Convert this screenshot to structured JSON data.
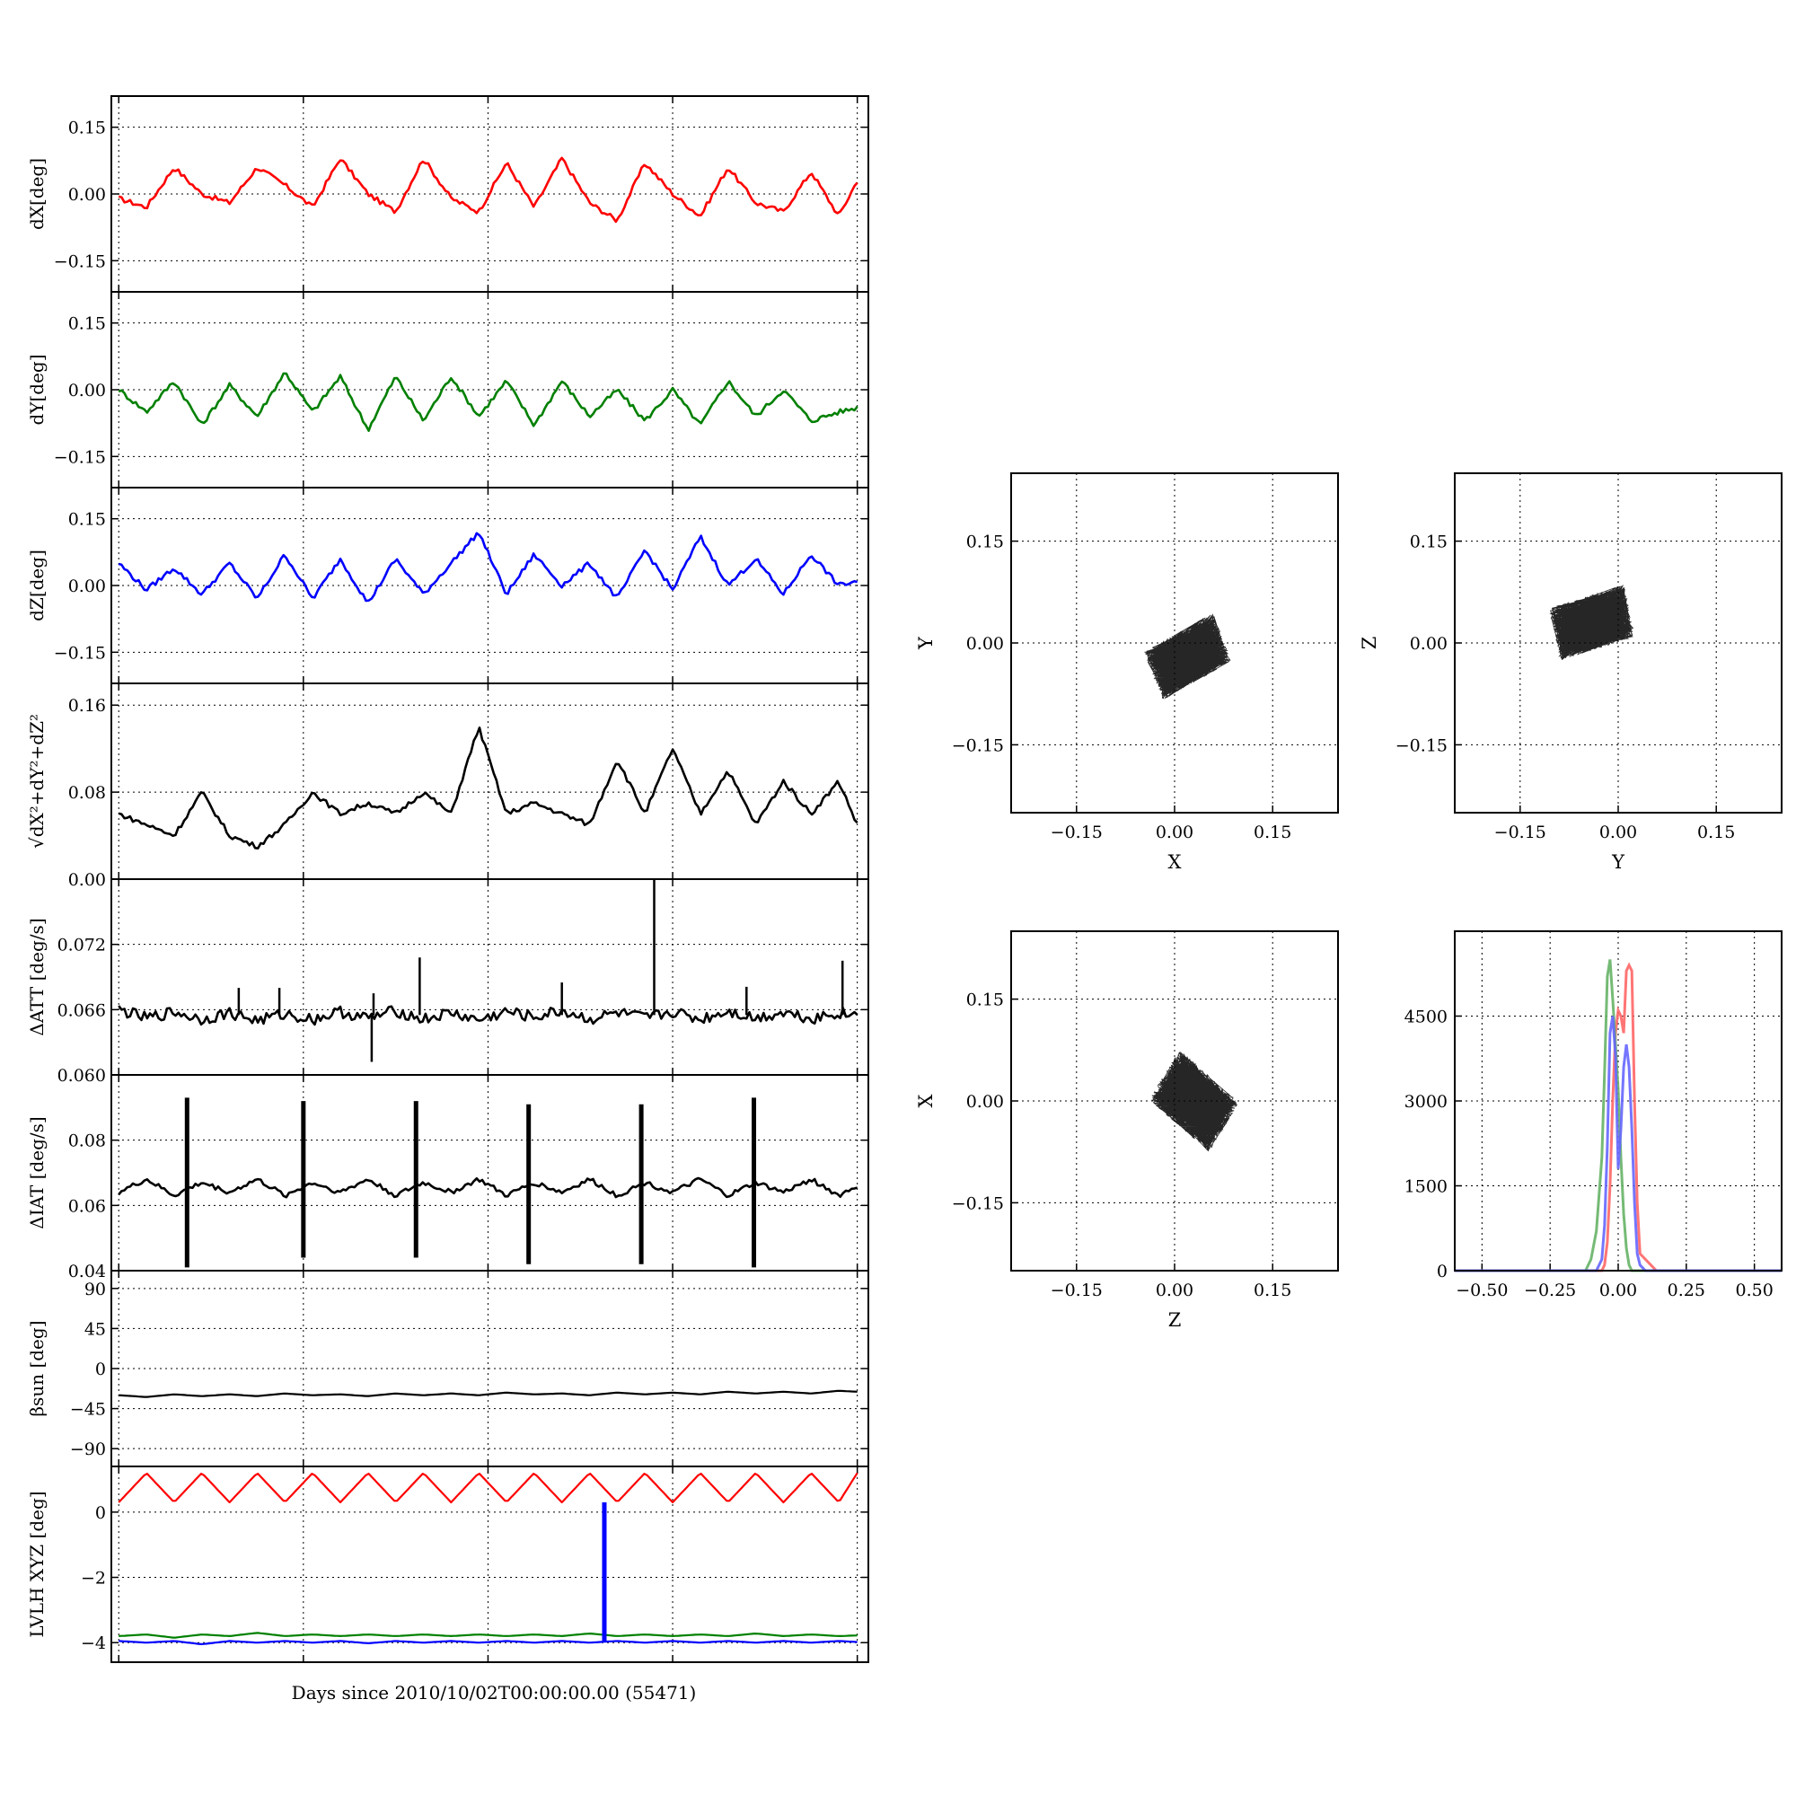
{
  "figure": {
    "xlabel": "Days since 2010/10/02T00:00:00.00 (55471)"
  },
  "chart_data": [
    {
      "id": "dx",
      "type": "line",
      "ylabel": "dX[deg]",
      "ylim": [
        -0.22,
        0.22
      ],
      "yticks": [
        -0.15,
        0.0,
        0.15
      ],
      "yticklabels": [
        "−0.15",
        "0.00",
        "0.15"
      ],
      "grid": true,
      "x": [
        0.0,
        0.15,
        0.3,
        0.45,
        0.6,
        0.75,
        0.9,
        1.05,
        1.2,
        1.35,
        1.5,
        1.65,
        1.8,
        1.95,
        2.1,
        2.25,
        2.4,
        2.55,
        2.7,
        2.85,
        3.0,
        3.15,
        3.3,
        3.45,
        3.6,
        3.75,
        3.9,
        4.0
      ],
      "series": [
        {
          "color": "#ff0000",
          "values": [
            -0.01,
            -0.03,
            0.06,
            0.0,
            -0.02,
            0.06,
            0.02,
            -0.03,
            0.08,
            0.0,
            -0.04,
            0.08,
            -0.01,
            -0.04,
            0.07,
            -0.03,
            0.08,
            -0.02,
            -0.06,
            0.07,
            0.0,
            -0.05,
            0.06,
            -0.02,
            -0.04,
            0.05,
            -0.05,
            0.03
          ]
        }
      ]
    },
    {
      "id": "dy",
      "type": "line",
      "ylabel": "dY[deg]",
      "ylim": [
        -0.22,
        0.22
      ],
      "yticks": [
        -0.15,
        0.0,
        0.15
      ],
      "yticklabels": [
        "−0.15",
        "0.00",
        "0.15"
      ],
      "grid": true,
      "x": [
        0.0,
        0.15,
        0.3,
        0.45,
        0.6,
        0.75,
        0.9,
        1.05,
        1.2,
        1.35,
        1.5,
        1.65,
        1.8,
        1.95,
        2.1,
        2.25,
        2.4,
        2.55,
        2.7,
        2.85,
        3.0,
        3.15,
        3.3,
        3.45,
        3.6,
        3.75,
        3.9,
        4.0
      ],
      "series": [
        {
          "color": "#008000",
          "values": [
            0.0,
            -0.05,
            0.02,
            -0.08,
            0.01,
            -0.06,
            0.04,
            -0.05,
            0.03,
            -0.09,
            0.03,
            -0.07,
            0.03,
            -0.06,
            0.02,
            -0.08,
            0.02,
            -0.06,
            0.0,
            -0.07,
            0.0,
            -0.08,
            0.02,
            -0.06,
            0.0,
            -0.07,
            -0.05,
            -0.04
          ]
        }
      ]
    },
    {
      "id": "dz",
      "type": "line",
      "ylabel": "dZ[deg]",
      "ylim": [
        -0.22,
        0.22
      ],
      "yticks": [
        -0.15,
        0.0,
        0.15
      ],
      "yticklabels": [
        "−0.15",
        "0.00",
        "0.15"
      ],
      "grid": true,
      "x": [
        0.0,
        0.15,
        0.3,
        0.45,
        0.6,
        0.75,
        0.9,
        1.05,
        1.2,
        1.35,
        1.5,
        1.65,
        1.8,
        1.95,
        2.1,
        2.25,
        2.4,
        2.55,
        2.7,
        2.85,
        3.0,
        3.15,
        3.3,
        3.45,
        3.6,
        3.75,
        3.9,
        4.0
      ],
      "series": [
        {
          "color": "#0000ff",
          "values": [
            0.05,
            -0.01,
            0.04,
            -0.02,
            0.05,
            -0.03,
            0.07,
            -0.03,
            0.06,
            -0.04,
            0.06,
            -0.02,
            0.05,
            0.12,
            -0.02,
            0.07,
            0.0,
            0.05,
            -0.03,
            0.08,
            -0.01,
            0.11,
            0.0,
            0.06,
            -0.02,
            0.07,
            0.0,
            0.01
          ]
        }
      ]
    },
    {
      "id": "rss",
      "type": "line",
      "ylabel": "√dX²+dY²+dZ²",
      "ylim": [
        0.0,
        0.18
      ],
      "yticks": [
        0.0,
        0.08,
        0.16
      ],
      "yticklabels": [
        "0.00",
        "0.08",
        "0.16"
      ],
      "grid": true,
      "x": [
        0.0,
        0.15,
        0.3,
        0.45,
        0.6,
        0.75,
        0.9,
        1.05,
        1.2,
        1.35,
        1.5,
        1.65,
        1.8,
        1.95,
        2.1,
        2.25,
        2.4,
        2.55,
        2.7,
        2.85,
        3.0,
        3.15,
        3.3,
        3.45,
        3.6,
        3.75,
        3.9,
        4.0
      ],
      "series": [
        {
          "color": "#000000",
          "values": [
            0.06,
            0.05,
            0.04,
            0.08,
            0.04,
            0.03,
            0.05,
            0.08,
            0.06,
            0.07,
            0.06,
            0.08,
            0.06,
            0.14,
            0.06,
            0.07,
            0.06,
            0.05,
            0.11,
            0.06,
            0.12,
            0.06,
            0.1,
            0.05,
            0.09,
            0.06,
            0.09,
            0.05
          ]
        }
      ]
    },
    {
      "id": "datt",
      "type": "line",
      "ylabel": "ΔATT [deg/s]",
      "ylim": [
        0.06,
        0.078
      ],
      "yticks": [
        0.06,
        0.066,
        0.072
      ],
      "yticklabels": [
        "0.060",
        "0.066",
        "0.072"
      ],
      "grid": true,
      "x": [
        0.0,
        0.15,
        0.3,
        0.45,
        0.6,
        0.75,
        0.9,
        1.05,
        1.2,
        1.35,
        1.5,
        1.65,
        1.8,
        1.95,
        2.1,
        2.25,
        2.4,
        2.55,
        2.7,
        2.85,
        3.0,
        3.15,
        3.3,
        3.45,
        3.6,
        3.75,
        3.9,
        4.0
      ],
      "series": [
        {
          "color": "#000000",
          "values": [
            0.066,
            0.0652,
            0.0658,
            0.0651,
            0.0657,
            0.065,
            0.0656,
            0.0651,
            0.0658,
            0.0652,
            0.0659,
            0.0651,
            0.0657,
            0.065,
            0.0658,
            0.0653,
            0.0659,
            0.0651,
            0.0657,
            0.0652,
            0.0658,
            0.0651,
            0.0659,
            0.0652,
            0.0658,
            0.0652,
            0.0657,
            0.0655
          ]
        }
      ],
      "spikes": [
        {
          "x": 0.65,
          "value": 0.068
        },
        {
          "x": 0.87,
          "value": 0.068
        },
        {
          "x": 1.38,
          "value": 0.0675
        },
        {
          "x": 1.37,
          "value": 0.0612
        },
        {
          "x": 1.63,
          "value": 0.0708
        },
        {
          "x": 2.4,
          "value": 0.0685
        },
        {
          "x": 2.9,
          "value": 0.078
        },
        {
          "x": 3.4,
          "value": 0.0681
        },
        {
          "x": 3.92,
          "value": 0.0705
        }
      ]
    },
    {
      "id": "diat",
      "type": "line",
      "ylabel": "ΔIAT [deg/s]",
      "ylim": [
        0.04,
        0.1
      ],
      "yticks": [
        0.04,
        0.06,
        0.08
      ],
      "yticklabels": [
        "0.04",
        "0.06",
        "0.08"
      ],
      "grid": true,
      "x": [
        0.0,
        0.15,
        0.3,
        0.45,
        0.6,
        0.75,
        0.9,
        1.05,
        1.2,
        1.35,
        1.5,
        1.65,
        1.8,
        1.95,
        2.1,
        2.25,
        2.4,
        2.55,
        2.7,
        2.85,
        3.0,
        3.15,
        3.3,
        3.45,
        3.6,
        3.75,
        3.9,
        4.0
      ],
      "series": [
        {
          "color": "#000000",
          "values": [
            0.064,
            0.068,
            0.063,
            0.067,
            0.064,
            0.068,
            0.063,
            0.067,
            0.064,
            0.068,
            0.063,
            0.067,
            0.064,
            0.068,
            0.063,
            0.067,
            0.064,
            0.068,
            0.063,
            0.067,
            0.064,
            0.068,
            0.063,
            0.067,
            0.064,
            0.068,
            0.063,
            0.066
          ]
        }
      ],
      "spikes": [
        {
          "x": 0.37,
          "low": 0.041,
          "high": 0.093
        },
        {
          "x": 1.0,
          "low": 0.044,
          "high": 0.092
        },
        {
          "x": 1.61,
          "low": 0.044,
          "high": 0.092
        },
        {
          "x": 2.22,
          "low": 0.042,
          "high": 0.091
        },
        {
          "x": 2.83,
          "low": 0.042,
          "high": 0.091
        },
        {
          "x": 3.44,
          "low": 0.041,
          "high": 0.093
        }
      ]
    },
    {
      "id": "beta",
      "type": "line",
      "ylabel": "βsun [deg]",
      "ylim": [
        -110,
        110
      ],
      "yticks": [
        -90,
        -45,
        0,
        45,
        90
      ],
      "yticklabels": [
        "−90",
        "−45",
        "0",
        "45",
        "90"
      ],
      "grid": true,
      "x": [
        0.0,
        0.15,
        0.3,
        0.45,
        0.6,
        0.75,
        0.9,
        1.05,
        1.2,
        1.35,
        1.5,
        1.65,
        1.8,
        1.95,
        2.1,
        2.25,
        2.4,
        2.55,
        2.7,
        2.85,
        3.0,
        3.15,
        3.3,
        3.45,
        3.6,
        3.75,
        3.9,
        4.0
      ],
      "series": [
        {
          "color": "#000000",
          "values": [
            -30,
            -32,
            -29,
            -31,
            -29,
            -31,
            -28,
            -30,
            -29,
            -31,
            -28,
            -30,
            -28,
            -30,
            -27,
            -29,
            -28,
            -30,
            -27,
            -29,
            -27,
            -29,
            -26,
            -28,
            -26,
            -28,
            -25,
            -26
          ]
        }
      ]
    },
    {
      "id": "lvlh",
      "type": "line",
      "ylabel": "LVLH XYZ [deg]",
      "ylim": [
        -4.6,
        1.4
      ],
      "yticks": [
        -4,
        -2,
        0
      ],
      "yticklabels": [
        "−4",
        "−2",
        "0"
      ],
      "grid": true,
      "x": [
        0.0,
        0.15,
        0.3,
        0.45,
        0.6,
        0.75,
        0.9,
        1.05,
        1.2,
        1.35,
        1.5,
        1.65,
        1.8,
        1.95,
        2.1,
        2.25,
        2.4,
        2.55,
        2.7,
        2.85,
        3.0,
        3.15,
        3.3,
        3.45,
        3.6,
        3.75,
        3.9,
        4.0
      ],
      "series": [
        {
          "color": "#ff0000",
          "values": [
            0.3,
            1.2,
            0.3,
            1.2,
            0.3,
            1.2,
            0.3,
            1.2,
            0.3,
            1.2,
            0.3,
            1.2,
            0.3,
            1.2,
            0.3,
            1.2,
            0.3,
            1.2,
            0.3,
            1.2,
            0.3,
            1.2,
            0.3,
            1.2,
            0.3,
            1.2,
            0.3,
            1.2
          ]
        },
        {
          "color": "#008000",
          "values": [
            -3.8,
            -3.75,
            -3.85,
            -3.75,
            -3.8,
            -3.7,
            -3.8,
            -3.75,
            -3.8,
            -3.75,
            -3.8,
            -3.75,
            -3.8,
            -3.75,
            -3.8,
            -3.75,
            -3.8,
            -3.72,
            -3.8,
            -3.75,
            -3.8,
            -3.75,
            -3.8,
            -3.72,
            -3.8,
            -3.75,
            -3.8,
            -3.78
          ]
        },
        {
          "color": "#0000ff",
          "values": [
            -3.95,
            -4.0,
            -3.95,
            -4.05,
            -3.95,
            -4.0,
            -3.95,
            -4.0,
            -3.95,
            -4.02,
            -3.95,
            -4.0,
            -3.95,
            -4.0,
            -3.95,
            -4.0,
            -3.95,
            -4.0,
            -3.95,
            -4.0,
            -3.95,
            -4.0,
            -3.95,
            -4.0,
            -3.95,
            -4.0,
            -3.95,
            -3.98
          ]
        }
      ],
      "spikes": [
        {
          "x": 2.63,
          "low": -3.95,
          "high": 0.3,
          "color": "#0000ff"
        }
      ]
    },
    {
      "id": "xy",
      "type": "scatter",
      "xlabel": "X",
      "ylabel": "Y",
      "xlim": [
        -0.25,
        0.25
      ],
      "ylim": [
        -0.25,
        0.25
      ],
      "ticks": [
        -0.15,
        0.0,
        0.15
      ],
      "ticklabels": [
        "−0.15",
        "0.00",
        "0.15"
      ],
      "grid": true,
      "cloud": {
        "center_x": 0.02,
        "center_y": -0.02,
        "spread_x": 0.06,
        "spread_y": 0.05,
        "tilt": 0.5
      }
    },
    {
      "id": "yz",
      "type": "scatter",
      "xlabel": "Y",
      "ylabel": "Z",
      "xlim": [
        -0.25,
        0.25
      ],
      "ylim": [
        -0.25,
        0.25
      ],
      "ticks": [
        -0.15,
        0.0,
        0.15
      ],
      "ticklabels": [
        "−0.15",
        "0.00",
        "0.15"
      ],
      "grid": true,
      "cloud": {
        "center_x": -0.04,
        "center_y": 0.03,
        "spread_x": 0.06,
        "spread_y": 0.05,
        "tilt": 0.3
      }
    },
    {
      "id": "zx",
      "type": "scatter",
      "xlabel": "Z",
      "ylabel": "X",
      "xlim": [
        -0.25,
        0.25
      ],
      "ylim": [
        -0.25,
        0.25
      ],
      "ticks": [
        -0.15,
        0.0,
        0.15
      ],
      "ticklabels": [
        "−0.15",
        "0.00",
        "0.15"
      ],
      "grid": true,
      "cloud": {
        "center_x": 0.03,
        "center_y": 0.0,
        "spread_x": 0.06,
        "spread_y": 0.06,
        "tilt": -0.7
      }
    },
    {
      "id": "hist",
      "type": "line",
      "xlim": [
        -0.6,
        0.6
      ],
      "ylim": [
        0,
        6000
      ],
      "xticks": [
        -0.5,
        -0.25,
        0.0,
        0.25,
        0.5
      ],
      "xticklabels": [
        "−0.50",
        "−0.25",
        "0.00",
        "0.25",
        "0.50"
      ],
      "yticks": [
        0,
        1500,
        3000,
        4500
      ],
      "yticklabels": [
        "0",
        "1500",
        "3000",
        "4500"
      ],
      "grid": true,
      "x": [
        -0.6,
        -0.12,
        -0.1,
        -0.08,
        -0.06,
        -0.05,
        -0.04,
        -0.03,
        -0.02,
        -0.01,
        0.0,
        0.01,
        0.02,
        0.03,
        0.04,
        0.05,
        0.06,
        0.07,
        0.08,
        0.1,
        0.12,
        0.14,
        0.6
      ],
      "series": [
        {
          "color": "#ff6666",
          "values": [
            0,
            0,
            0,
            0,
            0,
            100,
            500,
            1500,
            3000,
            4200,
            4600,
            4500,
            4200,
            5300,
            5400,
            5300,
            3000,
            1200,
            300,
            200,
            100,
            0,
            0
          ]
        },
        {
          "color": "#66b366",
          "values": [
            0,
            0,
            200,
            700,
            2000,
            3500,
            5200,
            5500,
            4800,
            4000,
            3200,
            2000,
            1000,
            400,
            100,
            0,
            0,
            0,
            0,
            0,
            0,
            0,
            0
          ]
        },
        {
          "color": "#6666ff",
          "values": [
            0,
            0,
            0,
            0,
            200,
            800,
            2200,
            4200,
            4500,
            3800,
            1800,
            2500,
            3600,
            4000,
            3600,
            2500,
            1200,
            300,
            100,
            0,
            0,
            0,
            0
          ]
        }
      ]
    }
  ]
}
